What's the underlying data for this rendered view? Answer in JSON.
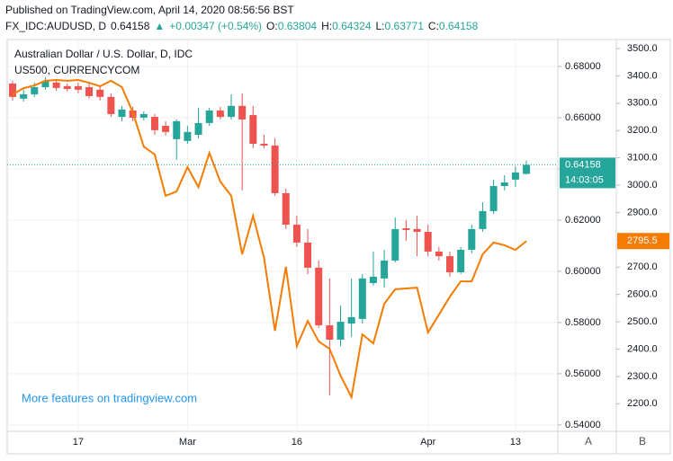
{
  "header": {
    "published": "Published on TradingView.com, April 14, 2020 08:56:56 BST",
    "symbol": "FX_IDC:AUDUSD, D",
    "price": "0.64158",
    "arrow": "▲",
    "change": "+0.00347 (+0.54%)",
    "o_label": "O:",
    "o": "0.63804",
    "h_label": "H:",
    "h": "0.64324",
    "l_label": "L:",
    "l": "0.63771",
    "c_label": "C:",
    "c": "0.64158"
  },
  "watermark": "More features on tradingview.com",
  "buttons": [
    "A",
    "B"
  ],
  "chart_data": {
    "type": "candlestick",
    "categories": [
      null,
      null,
      null,
      null,
      null,
      null,
      "17",
      null,
      null,
      null,
      null,
      null,
      null,
      null,
      null,
      null,
      "Mar",
      null,
      null,
      null,
      null,
      null,
      null,
      null,
      null,
      null,
      "16",
      null,
      null,
      null,
      null,
      null,
      null,
      null,
      null,
      null,
      null,
      null,
      "Apr",
      null,
      null,
      null,
      null,
      null,
      null,
      null,
      "13",
      null
    ],
    "ylim": [
      0.5375,
      0.6905
    ],
    "yticks": [
      {
        "value": 0.54,
        "label": "0.54000"
      },
      {
        "value": 0.56,
        "label": "0.56000"
      },
      {
        "value": 0.58,
        "label": "0.58000"
      },
      {
        "value": 0.6,
        "label": "0.60000"
      },
      {
        "value": 0.62,
        "label": "0.62000"
      },
      {
        "value": 0.64,
        "label": "0.64000"
      },
      {
        "value": 0.66,
        "label": "0.66000"
      },
      {
        "value": 0.68,
        "label": "0.68000"
      }
    ],
    "y2lim": [
      2099,
      3533
    ],
    "y2ticks": [
      {
        "value": 2200,
        "label": "2200.0"
      },
      {
        "value": 2300,
        "label": "2300.0"
      },
      {
        "value": 2400,
        "label": "2400.0"
      },
      {
        "value": 2500,
        "label": "2500.0"
      },
      {
        "value": 2600,
        "label": "2600.0"
      },
      {
        "value": 2700,
        "label": "2700.0"
      },
      {
        "value": 2800,
        "label": "2800.0"
      },
      {
        "value": 2900,
        "label": "2900.0"
      },
      {
        "value": 3000,
        "label": "3000.0"
      },
      {
        "value": 3100,
        "label": "3100.0"
      },
      {
        "value": 3200,
        "label": "3200.0"
      },
      {
        "value": 3300,
        "label": "3300.0"
      },
      {
        "value": 3400,
        "label": "3400.0"
      },
      {
        "value": 3500,
        "label": "3500.0"
      }
    ],
    "grid": true,
    "series": [
      {
        "name": "Australian Dollar / U.S. Dollar, D, IDC",
        "type": "candlestick",
        "up_color": "#26a69a",
        "down_color": "#ef5350",
        "last_label": "0.64158",
        "countdown": "14:03:05",
        "open": [
          0.6733,
          0.6674,
          0.6691,
          0.6719,
          0.6737,
          0.6723,
          0.6723,
          0.6719,
          0.6709,
          0.6681,
          0.6603,
          0.6628,
          0.66,
          0.6603,
          0.6568,
          0.6516,
          0.6509,
          0.6533,
          0.6579,
          0.6628,
          0.6603,
          0.6646,
          0.661,
          0.6498,
          0.6491,
          0.6305,
          0.6182,
          0.6112,
          0.6014,
          0.5789,
          0.5733,
          0.5796,
          0.5814,
          0.5954,
          0.5972,
          0.6042,
          0.6168,
          0.6165,
          0.6154,
          0.6077,
          0.6059,
          0.5996,
          0.6084,
          0.6165,
          0.6235,
          0.6333,
          0.6358,
          0.63804
        ],
        "high": [
          0.6744,
          0.6709,
          0.6737,
          0.6758,
          0.6751,
          0.6733,
          0.6737,
          0.6737,
          0.6723,
          0.6695,
          0.6646,
          0.6642,
          0.6625,
          0.6614,
          0.6586,
          0.6593,
          0.6568,
          0.6639,
          0.6639,
          0.6642,
          0.6691,
          0.6695,
          0.6646,
          0.6533,
          0.6519,
          0.6323,
          0.6217,
          0.6165,
          0.6042,
          0.5972,
          0.5866,
          0.5972,
          0.5989,
          0.6077,
          0.6084,
          0.621,
          0.62,
          0.6217,
          0.6182,
          0.6095,
          0.6077,
          0.6095,
          0.6182,
          0.627,
          0.6358,
          0.6375,
          0.641,
          0.64324
        ],
        "low": [
          0.6667,
          0.6663,
          0.6681,
          0.6709,
          0.6705,
          0.6702,
          0.6695,
          0.6674,
          0.6667,
          0.6603,
          0.6586,
          0.6586,
          0.6589,
          0.6533,
          0.653,
          0.6435,
          0.6498,
          0.6519,
          0.6568,
          0.6593,
          0.6593,
          0.6316,
          0.6481,
          0.6481,
          0.6295,
          0.6165,
          0.6095,
          0.5989,
          0.5779,
          0.5515,
          0.5708,
          0.5744,
          0.5796,
          0.5944,
          0.5937,
          0.6035,
          0.6119,
          0.6059,
          0.6059,
          0.6042,
          0.5979,
          0.5989,
          0.607,
          0.6154,
          0.6224,
          0.6316,
          0.633,
          0.63771
        ],
        "close": [
          0.6681,
          0.6691,
          0.6719,
          0.6744,
          0.6716,
          0.6712,
          0.6709,
          0.6684,
          0.6681,
          0.6614,
          0.6632,
          0.66,
          0.6614,
          0.6551,
          0.6544,
          0.6586,
          0.6544,
          0.6579,
          0.6628,
          0.6603,
          0.6646,
          0.6593,
          0.6498,
          0.6491,
          0.6305,
          0.6182,
          0.6112,
          0.6014,
          0.5789,
          0.5733,
          0.5803,
          0.5821,
          0.5972,
          0.5979,
          0.6042,
          0.6165,
          0.6161,
          0.6154,
          0.6077,
          0.6059,
          0.5996,
          0.6084,
          0.6165,
          0.6235,
          0.6333,
          0.6347,
          0.6386,
          0.64158
        ]
      },
      {
        "name": "US500, CURRENCYCOM",
        "type": "line",
        "axis": "y2",
        "color": "#f57c00",
        "last_label": "2795.5",
        "values": [
          3332,
          3355,
          3365,
          3382,
          3385,
          3382,
          3385,
          3375,
          3362,
          3382,
          3359,
          3266,
          3141,
          3112,
          2961,
          2977,
          3066,
          2993,
          3118,
          3013,
          2961,
          2747,
          2888,
          2734,
          2467,
          2701,
          2411,
          2503,
          2428,
          2401,
          2303,
          2224,
          2454,
          2421,
          2566,
          2619,
          2622,
          2625,
          2461,
          2526,
          2592,
          2648,
          2648,
          2747,
          2790,
          2780,
          2763,
          2795.5
        ]
      }
    ]
  }
}
